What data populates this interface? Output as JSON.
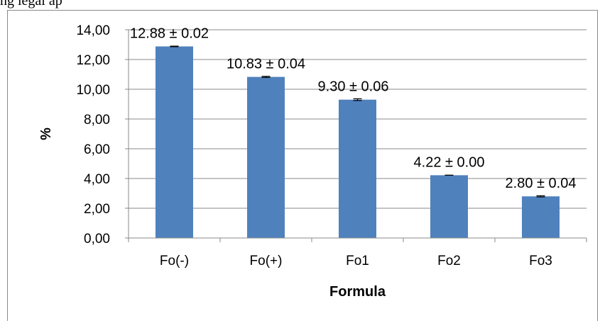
{
  "page_top_text": "ng legal ap",
  "chart_data": {
    "type": "bar",
    "categories": [
      "Fo(-)",
      "Fo(+)",
      "Fo1",
      "Fo2",
      "Fo3"
    ],
    "values": [
      12.88,
      10.83,
      9.3,
      4.22,
      2.8
    ],
    "errors": [
      0.02,
      0.04,
      0.06,
      0.0,
      0.04
    ],
    "data_labels": [
      "12.88 ± 0.02",
      "10.83 ± 0.04",
      "9.30 ± 0.06",
      "4.22 ± 0.00",
      "2.80 ± 0.04"
    ],
    "title": "",
    "xlabel": "Formula",
    "ylabel": "%",
    "ylim": [
      0,
      14
    ],
    "yticks": [
      0,
      2,
      4,
      6,
      8,
      10,
      12,
      14
    ],
    "ytick_labels": [
      "0,00",
      "2,00",
      "4,00",
      "6,00",
      "8,00",
      "10,00",
      "12,00",
      "14,00"
    ],
    "grid": true,
    "legend": "none",
    "bar_color": "#4f81bd",
    "grid_color": "#8a8a8a"
  }
}
